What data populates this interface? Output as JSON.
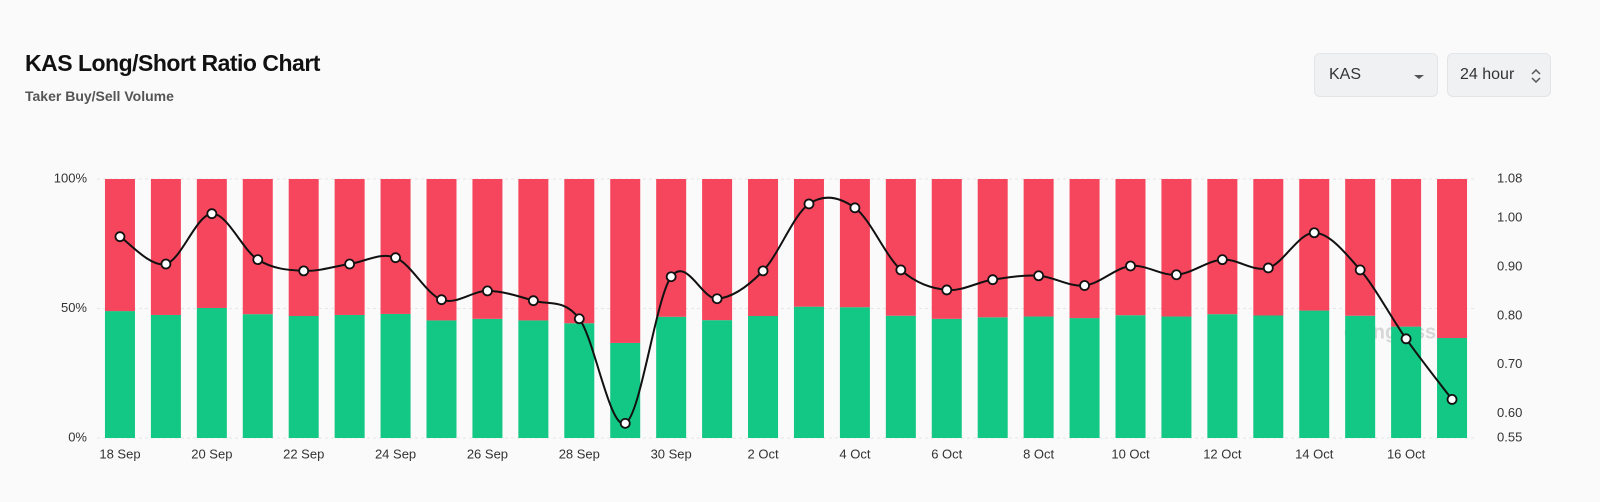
{
  "header": {
    "title": "KAS Long/Short Ratio Chart",
    "subtitle": "Taker Buy/Sell Volume"
  },
  "controls": {
    "symbol": "KAS",
    "interval": "24 hour"
  },
  "chart_data": {
    "type": "bar",
    "stacked": true,
    "watermark": "coinglass",
    "categories": [
      "18 Sep",
      null,
      "20 Sep",
      null,
      "22 Sep",
      null,
      "24 Sep",
      null,
      "26 Sep",
      null,
      "28 Sep",
      null,
      "30 Sep",
      null,
      "2 Oct",
      null,
      "4 Oct",
      null,
      "6 Oct",
      null,
      "8 Oct",
      null,
      "10 Oct",
      null,
      "12 Oct",
      null,
      "14 Oct",
      null,
      "16 Oct",
      null
    ],
    "ylim": [
      0,
      100
    ],
    "yticks": [
      {
        "value": 0,
        "label": "0%"
      },
      {
        "value": 50,
        "label": "50%"
      },
      {
        "value": 100,
        "label": "100%"
      }
    ],
    "y2lim": [
      0.55,
      1.08
    ],
    "y2ticks": [
      0.55,
      {
        "value": 0.6,
        "label": "0.60"
      },
      {
        "value": 0.7,
        "label": "0.70"
      },
      {
        "value": 0.8,
        "label": "0.80"
      },
      {
        "value": 0.9,
        "label": "0.90"
      },
      {
        "value": 1.0,
        "label": "1.00"
      },
      1.08
    ],
    "grid": true,
    "series": [
      {
        "type": "bar",
        "color": "#13c784",
        "values": [
          49.0,
          47.5,
          50.2,
          47.8,
          47.1,
          47.5,
          47.9,
          45.4,
          46.0,
          45.4,
          44.3,
          36.7,
          46.8,
          45.5,
          47.1,
          50.7,
          50.5,
          47.2,
          46.0,
          46.6,
          46.9,
          46.3,
          47.4,
          46.9,
          47.8,
          47.3,
          49.2,
          47.2,
          43.0,
          38.6
        ]
      },
      {
        "type": "bar",
        "color": "#f6465d",
        "values": [
          51.0,
          52.5,
          49.8,
          52.2,
          52.9,
          52.5,
          52.1,
          54.6,
          54.0,
          54.6,
          55.7,
          63.3,
          53.2,
          54.5,
          52.9,
          49.3,
          49.5,
          52.8,
          54.0,
          53.4,
          53.1,
          53.7,
          52.6,
          53.1,
          52.2,
          52.7,
          50.8,
          52.8,
          57.0,
          61.4
        ]
      },
      {
        "type": "line",
        "axis": "y2",
        "color": "#111111",
        "values": [
          0.962,
          0.906,
          1.009,
          0.915,
          0.892,
          0.906,
          0.919,
          0.833,
          0.851,
          0.831,
          0.794,
          0.58,
          0.88,
          0.835,
          0.892,
          1.029,
          1.021,
          0.894,
          0.853,
          0.874,
          0.882,
          0.862,
          0.902,
          0.884,
          0.915,
          0.898,
          0.97,
          0.894,
          0.753,
          0.629
        ]
      }
    ]
  }
}
